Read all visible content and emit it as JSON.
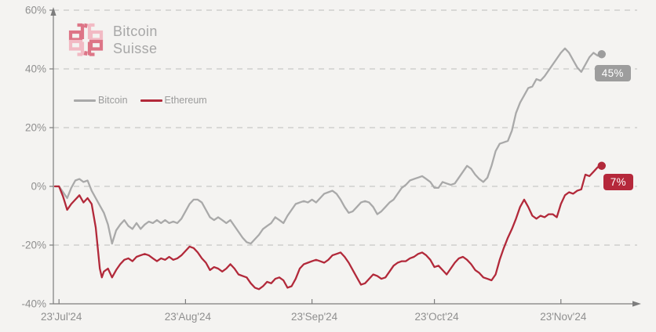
{
  "logo": {
    "line1": "Bitcoin",
    "line2": "Suisse",
    "text_color": "#a7a7a7",
    "color_dark": "#dd7587",
    "color_light": "#f2bac4"
  },
  "colors": {
    "background": "#f4f3f1",
    "axis": "#7d7d7d",
    "grid": "#bcbcba",
    "tick_label": "#8f8f8f"
  },
  "chart_data": {
    "type": "line",
    "title": "",
    "xlabel": "",
    "ylabel": "",
    "x_unit": "days since 23 Jul 2024",
    "ylim": [
      -40,
      60
    ],
    "grid": "dashed-horizontal",
    "legend_position": "top-left",
    "y_ticks": [
      {
        "value": 60,
        "label": "60%"
      },
      {
        "value": 40,
        "label": "40%"
      },
      {
        "value": 20,
        "label": "20%"
      },
      {
        "value": 0,
        "label": "0%"
      },
      {
        "value": -20,
        "label": "-20%"
      },
      {
        "value": -40,
        "label": "-40%"
      }
    ],
    "grid_y_values": [
      60,
      40,
      20,
      0,
      -20
    ],
    "x_ticks": [
      {
        "day": 0,
        "label": "23'Jul'24"
      },
      {
        "day": 31,
        "label": "23'Aug'24"
      },
      {
        "day": 62,
        "label": "23'Sep'24"
      },
      {
        "day": 92,
        "label": "23'Oct'24"
      },
      {
        "day": 123,
        "label": "23'Nov'24"
      }
    ],
    "series": [
      {
        "name": "Bitcoin",
        "color": "#a9a9a9",
        "dot_color": "#9d9d9d",
        "badge_color": "#9d9d9d",
        "end_label": "45%",
        "points": [
          [
            -1,
            0
          ],
          [
            0,
            0
          ],
          [
            1,
            -2
          ],
          [
            2,
            -4
          ],
          [
            3,
            -0.5
          ],
          [
            4,
            2
          ],
          [
            5,
            2.5
          ],
          [
            6,
            1.5
          ],
          [
            7,
            2
          ],
          [
            8,
            -1.5
          ],
          [
            9,
            -4
          ],
          [
            10,
            -6.5
          ],
          [
            11,
            -9
          ],
          [
            12,
            -13
          ],
          [
            13,
            -19.5
          ],
          [
            14,
            -15
          ],
          [
            15,
            -13
          ],
          [
            16,
            -11.5
          ],
          [
            17,
            -13.5
          ],
          [
            18,
            -14.5
          ],
          [
            19,
            -12.5
          ],
          [
            20,
            -14.5
          ],
          [
            21,
            -13
          ],
          [
            22,
            -12
          ],
          [
            23,
            -12.5
          ],
          [
            24,
            -11.5
          ],
          [
            25,
            -12.5
          ],
          [
            26,
            -11.5
          ],
          [
            27,
            -12.5
          ],
          [
            28,
            -12
          ],
          [
            29,
            -12.5
          ],
          [
            30,
            -11
          ],
          [
            31,
            -8.5
          ],
          [
            32,
            -6
          ],
          [
            33,
            -4.5
          ],
          [
            34,
            -4.5
          ],
          [
            35,
            -5.5
          ],
          [
            36,
            -8
          ],
          [
            37,
            -10.5
          ],
          [
            38,
            -11.5
          ],
          [
            39,
            -10.5
          ],
          [
            40,
            -11.5
          ],
          [
            41,
            -12.5
          ],
          [
            42,
            -11.5
          ],
          [
            43,
            -13.5
          ],
          [
            44,
            -15.5
          ],
          [
            45,
            -17.5
          ],
          [
            46,
            -19
          ],
          [
            47,
            -19.5
          ],
          [
            48,
            -18
          ],
          [
            49,
            -16.5
          ],
          [
            50,
            -14.5
          ],
          [
            51,
            -13.5
          ],
          [
            52,
            -12.5
          ],
          [
            53,
            -10.5
          ],
          [
            54,
            -11.5
          ],
          [
            55,
            -12.5
          ],
          [
            56,
            -10
          ],
          [
            57,
            -8
          ],
          [
            58,
            -6
          ],
          [
            59,
            -5.5
          ],
          [
            60,
            -5
          ],
          [
            61,
            -5.5
          ],
          [
            62,
            -4.5
          ],
          [
            63,
            -5.5
          ],
          [
            64,
            -4
          ],
          [
            65,
            -2.5
          ],
          [
            66,
            -2
          ],
          [
            67,
            -1.5
          ],
          [
            68,
            -2.5
          ],
          [
            69,
            -4.5
          ],
          [
            70,
            -7
          ],
          [
            71,
            -9
          ],
          [
            72,
            -8.5
          ],
          [
            73,
            -7
          ],
          [
            74,
            -5.5
          ],
          [
            75,
            -5
          ],
          [
            76,
            -5.5
          ],
          [
            77,
            -7
          ],
          [
            78,
            -9.5
          ],
          [
            79,
            -8.5
          ],
          [
            80,
            -7
          ],
          [
            81,
            -5.5
          ],
          [
            82,
            -4.5
          ],
          [
            83,
            -2.5
          ],
          [
            84,
            -0.5
          ],
          [
            85,
            0.5
          ],
          [
            86,
            2
          ],
          [
            87,
            2.5
          ],
          [
            88,
            3
          ],
          [
            89,
            3.5
          ],
          [
            90,
            2.5
          ],
          [
            91,
            1.5
          ],
          [
            92,
            -0.5
          ],
          [
            93,
            -0.5
          ],
          [
            94,
            1.5
          ],
          [
            95,
            1
          ],
          [
            96,
            0.5
          ],
          [
            97,
            1
          ],
          [
            98,
            3
          ],
          [
            99,
            5
          ],
          [
            100,
            7
          ],
          [
            101,
            6
          ],
          [
            102,
            4
          ],
          [
            103,
            2.5
          ],
          [
            104,
            1.5
          ],
          [
            105,
            3
          ],
          [
            106,
            7
          ],
          [
            107,
            12
          ],
          [
            108,
            14.5
          ],
          [
            109,
            15
          ],
          [
            110,
            15.5
          ],
          [
            111,
            19
          ],
          [
            112,
            25
          ],
          [
            113,
            28.5
          ],
          [
            114,
            31
          ],
          [
            115,
            33.5
          ],
          [
            116,
            34
          ],
          [
            117,
            36.5
          ],
          [
            118,
            36
          ],
          [
            119,
            37.5
          ],
          [
            120,
            39.5
          ],
          [
            121,
            41.5
          ],
          [
            122,
            43.5
          ],
          [
            123,
            45.5
          ],
          [
            124,
            47
          ],
          [
            125,
            45.5
          ],
          [
            126,
            43
          ],
          [
            127,
            40.5
          ],
          [
            128,
            39
          ],
          [
            129,
            41.5
          ],
          [
            130,
            44
          ],
          [
            131,
            45.5
          ],
          [
            132,
            44.5
          ],
          [
            133,
            45
          ]
        ]
      },
      {
        "name": "Ethereum",
        "color": "#b2293a",
        "dot_color": "#b2293a",
        "badge_color": "#b5283b",
        "end_label": "7%",
        "points": [
          [
            -1,
            0
          ],
          [
            0,
            0
          ],
          [
            1,
            -3.5
          ],
          [
            2,
            -8
          ],
          [
            3,
            -6
          ],
          [
            4,
            -4.5
          ],
          [
            5,
            -3
          ],
          [
            6,
            -5.5
          ],
          [
            7,
            -4
          ],
          [
            8,
            -6
          ],
          [
            9,
            -14
          ],
          [
            10,
            -28
          ],
          [
            10.5,
            -31
          ],
          [
            11,
            -29
          ],
          [
            12,
            -28
          ],
          [
            13,
            -31
          ],
          [
            14,
            -28.5
          ],
          [
            15,
            -26.5
          ],
          [
            16,
            -25
          ],
          [
            17,
            -24.5
          ],
          [
            18,
            -25.5
          ],
          [
            19,
            -24
          ],
          [
            20,
            -23.5
          ],
          [
            21,
            -23
          ],
          [
            22,
            -23.5
          ],
          [
            23,
            -24.5
          ],
          [
            24,
            -25.5
          ],
          [
            25,
            -24.5
          ],
          [
            26,
            -25
          ],
          [
            27,
            -24
          ],
          [
            28,
            -25
          ],
          [
            29,
            -24.5
          ],
          [
            30,
            -23.5
          ],
          [
            31,
            -22
          ],
          [
            32,
            -20.5
          ],
          [
            33,
            -21
          ],
          [
            34,
            -22.5
          ],
          [
            35,
            -24.5
          ],
          [
            36,
            -26
          ],
          [
            37,
            -28.5
          ],
          [
            38,
            -27.5
          ],
          [
            39,
            -28
          ],
          [
            40,
            -29
          ],
          [
            41,
            -28
          ],
          [
            42,
            -26.5
          ],
          [
            43,
            -28
          ],
          [
            44,
            -30
          ],
          [
            45,
            -30.5
          ],
          [
            46,
            -31
          ],
          [
            47,
            -33
          ],
          [
            48,
            -34.5
          ],
          [
            49,
            -35
          ],
          [
            50,
            -34
          ],
          [
            51,
            -32.5
          ],
          [
            52,
            -33
          ],
          [
            53,
            -31.5
          ],
          [
            54,
            -31
          ],
          [
            55,
            -32
          ],
          [
            56,
            -34.5
          ],
          [
            57,
            -34
          ],
          [
            58,
            -31.5
          ],
          [
            59,
            -28
          ],
          [
            60,
            -26.5
          ],
          [
            61,
            -26
          ],
          [
            62,
            -25.5
          ],
          [
            63,
            -25
          ],
          [
            64,
            -25.5
          ],
          [
            65,
            -26
          ],
          [
            66,
            -25
          ],
          [
            67,
            -23.5
          ],
          [
            68,
            -23
          ],
          [
            69,
            -22.5
          ],
          [
            70,
            -24
          ],
          [
            71,
            -26
          ],
          [
            72,
            -28.5
          ],
          [
            73,
            -31
          ],
          [
            74,
            -33.5
          ],
          [
            75,
            -33
          ],
          [
            76,
            -31.5
          ],
          [
            77,
            -30
          ],
          [
            78,
            -30.5
          ],
          [
            79,
            -31.5
          ],
          [
            80,
            -31
          ],
          [
            81,
            -29
          ],
          [
            82,
            -27
          ],
          [
            83,
            -26
          ],
          [
            84,
            -25.5
          ],
          [
            85,
            -25.5
          ],
          [
            86,
            -24.5
          ],
          [
            87,
            -24
          ],
          [
            88,
            -23
          ],
          [
            89,
            -22.5
          ],
          [
            90,
            -23.5
          ],
          [
            91,
            -25
          ],
          [
            92,
            -27.5
          ],
          [
            93,
            -27
          ],
          [
            94,
            -28.5
          ],
          [
            95,
            -30
          ],
          [
            96,
            -28
          ],
          [
            97,
            -26
          ],
          [
            98,
            -24.5
          ],
          [
            99,
            -24
          ],
          [
            100,
            -25
          ],
          [
            101,
            -26.5
          ],
          [
            102,
            -28.5
          ],
          [
            103,
            -29.5
          ],
          [
            104,
            -31
          ],
          [
            105,
            -31.5
          ],
          [
            106,
            -32
          ],
          [
            107,
            -30
          ],
          [
            108,
            -25
          ],
          [
            109,
            -21
          ],
          [
            110,
            -17.5
          ],
          [
            111,
            -14.5
          ],
          [
            112,
            -11
          ],
          [
            113,
            -7
          ],
          [
            114,
            -4.5
          ],
          [
            115,
            -7
          ],
          [
            116,
            -10
          ],
          [
            117,
            -11
          ],
          [
            118,
            -10
          ],
          [
            119,
            -10.5
          ],
          [
            120,
            -9.5
          ],
          [
            121,
            -9.5
          ],
          [
            122,
            -10.5
          ],
          [
            123,
            -6
          ],
          [
            124,
            -3
          ],
          [
            125,
            -2
          ],
          [
            126,
            -2.5
          ],
          [
            127,
            -1.5
          ],
          [
            128,
            -1
          ],
          [
            129,
            4
          ],
          [
            130,
            3.5
          ],
          [
            131,
            5
          ],
          [
            132,
            6.5
          ],
          [
            133,
            7
          ]
        ]
      }
    ]
  }
}
